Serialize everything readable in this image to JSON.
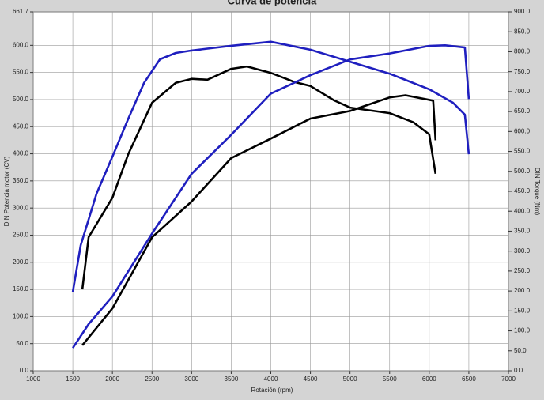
{
  "chart_data": {
    "type": "line",
    "title": "Curva de potencia",
    "x_label": "Rotación (rpm)",
    "y_label": "DIN Potencia motor (CV)",
    "y2_label": "DIN Torque (Nm)",
    "xlim": [
      1000,
      7000
    ],
    "xticks": [
      1000,
      1500,
      2000,
      2500,
      3000,
      3500,
      4000,
      4500,
      5000,
      5500,
      6000,
      6500,
      7000
    ],
    "ylim": [
      0,
      661.7
    ],
    "yticks": [
      {
        "value": 0,
        "label": "0.0"
      },
      {
        "value": 50,
        "label": "50.0"
      },
      {
        "value": 100,
        "label": "100.0"
      },
      {
        "value": 150,
        "label": "150.0"
      },
      {
        "value": 200,
        "label": "200.0"
      },
      {
        "value": 250,
        "label": "250.0"
      },
      {
        "value": 300,
        "label": "300.0"
      },
      {
        "value": 350,
        "label": "350.0"
      },
      {
        "value": 400,
        "label": "400.0"
      },
      {
        "value": 450,
        "label": "450.0"
      },
      {
        "value": 500,
        "label": "500.0"
      },
      {
        "value": 550,
        "label": "550.0"
      },
      {
        "value": 600,
        "label": "600.0"
      },
      661.7
    ],
    "y2lim": [
      0,
      900
    ],
    "y2ticks": [
      {
        "value": 0,
        "label": "0.0"
      },
      {
        "value": 50,
        "label": "50.0"
      },
      {
        "value": 100,
        "label": "100.0"
      },
      {
        "value": 150,
        "label": "150.0"
      },
      {
        "value": 200,
        "label": "200.0"
      },
      {
        "value": 250,
        "label": "250.0"
      },
      {
        "value": 300,
        "label": "300.0"
      },
      {
        "value": 350,
        "label": "350.0"
      },
      {
        "value": 400,
        "label": "400.0"
      },
      {
        "value": 450,
        "label": "450.0"
      },
      {
        "value": 500,
        "label": "500.0"
      },
      {
        "value": 550,
        "label": "550.0"
      },
      {
        "value": 600,
        "label": "600.0"
      },
      {
        "value": 650,
        "label": "650.0"
      },
      {
        "value": 700,
        "label": "700.0"
      },
      {
        "value": 750,
        "label": "750.0"
      },
      {
        "value": 800,
        "label": "800.0"
      },
      {
        "value": 850,
        "label": "850.0"
      },
      {
        "value": 900,
        "label": "900.0"
      }
    ],
    "grid": true,
    "series": [
      {
        "color": "#1f1fbf",
        "axis": "y2",
        "x": [
          1500,
          1600,
          1800,
          2000,
          2200,
          2400,
          2600,
          2800,
          3000,
          3500,
          4000,
          4500,
          5000,
          5500,
          6000,
          6300,
          6450,
          6500
        ],
        "values": [
          198,
          315,
          444,
          537,
          632,
          722,
          781,
          797,
          803,
          815,
          825,
          805,
          775,
          745,
          706,
          672,
          642,
          543
        ]
      },
      {
        "color": "#000000",
        "axis": "y2",
        "x": [
          1620,
          1700,
          2000,
          2200,
          2500,
          2800,
          3000,
          3200,
          3500,
          3700,
          4000,
          4300,
          4500,
          4800,
          5000,
          5500,
          5800,
          6000,
          6080
        ],
        "values": [
          204,
          335,
          434,
          543,
          672,
          722,
          732,
          730,
          757,
          763,
          747,
          724,
          714,
          678,
          660,
          646,
          623,
          593,
          494
        ]
      },
      {
        "color": "#1f1fbf",
        "x": [
          1500,
          1700,
          2000,
          2500,
          3000,
          3500,
          4000,
          4500,
          5000,
          5500,
          6000,
          6200,
          6450,
          6500
        ],
        "values": [
          42,
          86,
          137,
          253,
          363,
          435,
          511,
          545,
          574,
          585,
          599,
          600,
          596,
          501
        ]
      },
      {
        "color": "#000000",
        "x": [
          1620,
          2000,
          2500,
          3000,
          3500,
          4000,
          4500,
          5000,
          5500,
          5700,
          6050,
          6080
        ],
        "values": [
          47,
          115,
          246,
          312,
          392,
          428,
          465,
          479,
          504,
          508,
          498,
          425
        ]
      }
    ]
  }
}
